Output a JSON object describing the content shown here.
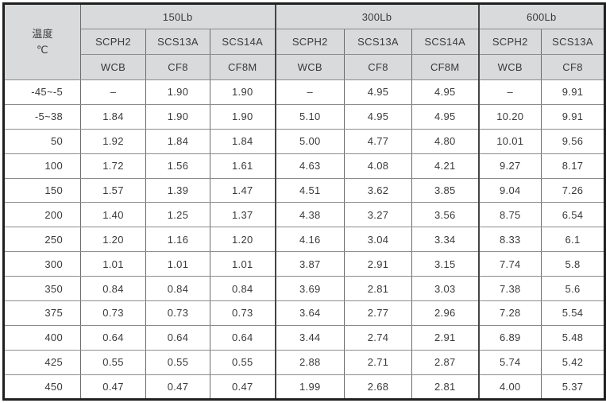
{
  "colors": {
    "header_bg": "#d8dadb",
    "inner_line": "#6b6b6b",
    "group_line": "#454545",
    "outer_border": "#1f1f1f",
    "text": "#3a3a3a",
    "cell_bg": "#ffffff"
  },
  "table": {
    "temp_header": {
      "title": "温度",
      "unit": "℃"
    },
    "groups": [
      {
        "label": "150Lb",
        "columns": [
          {
            "grade": "SCPH2",
            "casting": "WCB"
          },
          {
            "grade": "SCS13A",
            "casting": "CF8"
          },
          {
            "grade": "SCS14A",
            "casting": "CF8M"
          }
        ]
      },
      {
        "label": "300Lb",
        "columns": [
          {
            "grade": "SCPH2",
            "casting": "WCB"
          },
          {
            "grade": "SCS13A",
            "casting": "CF8"
          },
          {
            "grade": "SCS14A",
            "casting": "CF8M"
          }
        ]
      },
      {
        "label": "600Lb",
        "columns": [
          {
            "grade": "SCPH2",
            "casting": "WCB"
          },
          {
            "grade": "SCS13A",
            "casting": "CF8"
          }
        ]
      }
    ],
    "rows": [
      {
        "temp": "-45~-5",
        "values": [
          "–",
          "1.90",
          "1.90",
          "–",
          "4.95",
          "4.95",
          "–",
          "9.91"
        ]
      },
      {
        "temp": "-5~38",
        "values": [
          "1.84",
          "1.90",
          "1.90",
          "5.10",
          "4.95",
          "4.95",
          "10.20",
          "9.91"
        ]
      },
      {
        "temp": "50",
        "values": [
          "1.92",
          "1.84",
          "1.84",
          "5.00",
          "4.77",
          "4.80",
          "10.01",
          "9.56"
        ]
      },
      {
        "temp": "100",
        "values": [
          "1.72",
          "1.56",
          "1.61",
          "4.63",
          "4.08",
          "4.21",
          "9.27",
          "8.17"
        ]
      },
      {
        "temp": "150",
        "values": [
          "1.57",
          "1.39",
          "1.47",
          "4.51",
          "3.62",
          "3.85",
          "9.04",
          "7.26"
        ]
      },
      {
        "temp": "200",
        "values": [
          "1.40",
          "1.25",
          "1.37",
          "4.38",
          "3.27",
          "3.56",
          "8.75",
          "6.54"
        ]
      },
      {
        "temp": "250",
        "values": [
          "1.20",
          "1.16",
          "1.20",
          "4.16",
          "3.04",
          "3.34",
          "8.33",
          "6.1"
        ]
      },
      {
        "temp": "300",
        "values": [
          "1.01",
          "1.01",
          "1.01",
          "3.87",
          "2.91",
          "3.15",
          "7.74",
          "5.8"
        ]
      },
      {
        "temp": "350",
        "values": [
          "0.84",
          "0.84",
          "0.84",
          "3.69",
          "2.81",
          "3.03",
          "7.38",
          "5.6"
        ]
      },
      {
        "temp": "375",
        "values": [
          "0.73",
          "0.73",
          "0.73",
          "3.64",
          "2.77",
          "2.96",
          "7.28",
          "5.54"
        ]
      },
      {
        "temp": "400",
        "values": [
          "0.64",
          "0.64",
          "0.64",
          "3.44",
          "2.74",
          "2.91",
          "6.89",
          "5.48"
        ]
      },
      {
        "temp": "425",
        "values": [
          "0.55",
          "0.55",
          "0.55",
          "2.88",
          "2.71",
          "2.87",
          "5.74",
          "5.42"
        ]
      },
      {
        "temp": "450",
        "values": [
          "0.47",
          "0.47",
          "0.47",
          "1.99",
          "2.68",
          "2.81",
          "4.00",
          "5.37"
        ]
      }
    ]
  }
}
